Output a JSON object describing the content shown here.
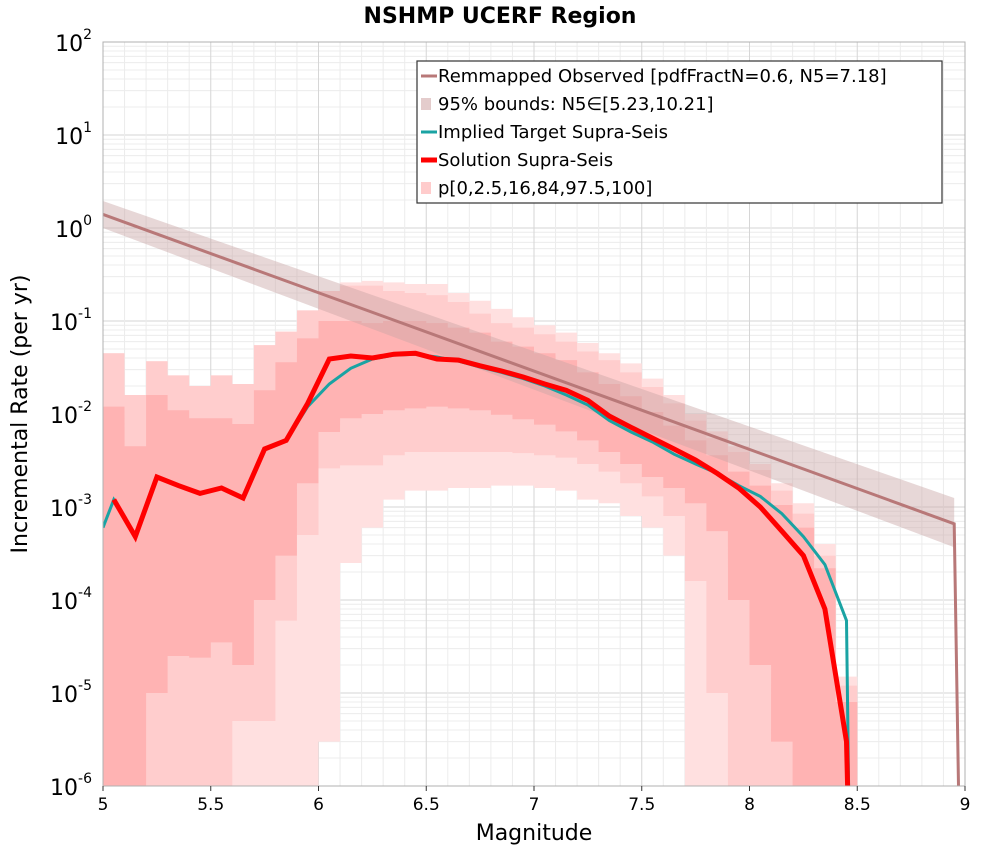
{
  "chart_data": {
    "type": "line",
    "title": "NSHMP UCERF Region",
    "xlabel": "Magnitude",
    "ylabel": "Incremental Rate (per yr)",
    "x_range": [
      5,
      9
    ],
    "y_range": [
      1e-06,
      100
    ],
    "y_scale": "log",
    "grid": true,
    "legend_position": "top-right",
    "x_ticks": [
      {
        "value": 5,
        "label": "5"
      },
      {
        "value": 5.5,
        "label": "5.5"
      },
      {
        "value": 6,
        "label": "6"
      },
      {
        "value": 6.5,
        "label": "6.5"
      },
      {
        "value": 7,
        "label": "7"
      },
      {
        "value": 7.5,
        "label": "7.5"
      },
      {
        "value": 8,
        "label": "8"
      },
      {
        "value": 8.5,
        "label": "8.5"
      },
      {
        "value": 9,
        "label": "9"
      }
    ],
    "y_ticks": [
      {
        "exp": -6,
        "base": "10",
        "power": "-6"
      },
      {
        "exp": -5,
        "base": "10",
        "power": "-5"
      },
      {
        "exp": -4,
        "base": "10",
        "power": "-4"
      },
      {
        "exp": -3,
        "base": "10",
        "power": "-3"
      },
      {
        "exp": -2,
        "base": "10",
        "power": "-2"
      },
      {
        "exp": -1,
        "base": "10",
        "power": "-1"
      },
      {
        "exp": 0,
        "base": "10",
        "power": "0"
      },
      {
        "exp": 1,
        "base": "10",
        "power": "1"
      },
      {
        "exp": 2,
        "base": "10",
        "power": "2"
      }
    ],
    "legend": [
      {
        "label": "Remmapped Observed [pdfFractN=0.6, N5=7.18]",
        "kind": "line",
        "color": "#b87878",
        "width": 3
      },
      {
        "label": "95% bounds: N5∈[5.23,10.21]",
        "kind": "band",
        "color": "#e4cccc"
      },
      {
        "label": "Implied Target Supra-Seis",
        "kind": "line",
        "color": "#1aa3a3",
        "width": 3
      },
      {
        "label": "Solution Supra-Seis",
        "kind": "line",
        "color": "#ff0000",
        "width": 5
      },
      {
        "label": "p[0,2.5,16,84,97.5,100]",
        "kind": "band",
        "color": "#ffcccc"
      }
    ],
    "colors": {
      "observed": "#b87878",
      "observed_band": "#e4cccc",
      "target": "#1aa3a3",
      "solution": "#ff0000",
      "band_outer": "#ffe0e0",
      "band_mid": "#ffc4c4",
      "band_inner": "#ffa8a8"
    },
    "series": [
      {
        "name": "Remmapped Observed [pdfFractN=0.6, N5=7.18]",
        "x": [
          5.0,
          8.95,
          8.97
        ],
        "y": [
          1.4,
          0.00066,
          1e-06
        ]
      },
      {
        "name": "95% bounds: N5∈[5.23,10.21]",
        "x": [
          5.0,
          8.95
        ],
        "lower": [
          1.0,
          0.00037
        ],
        "upper": [
          1.95,
          0.00125
        ]
      },
      {
        "name": "Implied Target Supra-Seis",
        "x": [
          5.0,
          5.05,
          5.15,
          5.25,
          5.35,
          5.45,
          5.55,
          5.65,
          5.75,
          5.85,
          5.95,
          6.05,
          6.15,
          6.25,
          6.35,
          6.45,
          6.55,
          6.65,
          6.75,
          6.85,
          6.95,
          7.05,
          7.15,
          7.25,
          7.35,
          7.45,
          7.55,
          7.65,
          7.75,
          7.85,
          7.95,
          8.05,
          8.15,
          8.25,
          8.35,
          8.45,
          8.46
        ],
        "y": [
          0.0006,
          0.0012,
          0.0005,
          0.0021,
          0.0017,
          0.0014,
          0.0016,
          0.00125,
          0.0042,
          0.0052,
          0.012,
          0.021,
          0.031,
          0.039,
          0.043,
          0.044,
          0.041,
          0.037,
          0.032,
          0.028,
          0.024,
          0.02,
          0.016,
          0.0125,
          0.0085,
          0.0064,
          0.005,
          0.0037,
          0.0029,
          0.0023,
          0.0017,
          0.0013,
          0.00085,
          0.00048,
          0.00024,
          6e-05,
          1e-06
        ]
      },
      {
        "name": "Solution Supra-Seis",
        "x": [
          5.05,
          5.15,
          5.25,
          5.35,
          5.45,
          5.55,
          5.65,
          5.75,
          5.85,
          5.95,
          6.05,
          6.15,
          6.25,
          6.35,
          6.45,
          6.55,
          6.65,
          6.75,
          6.85,
          6.95,
          7.05,
          7.15,
          7.25,
          7.35,
          7.45,
          7.55,
          7.65,
          7.75,
          7.85,
          7.95,
          8.05,
          8.15,
          8.25,
          8.35,
          8.45,
          8.455
        ],
        "y": [
          0.0012,
          0.00048,
          0.0021,
          0.0017,
          0.0014,
          0.0016,
          0.00125,
          0.0042,
          0.0052,
          0.013,
          0.039,
          0.042,
          0.04,
          0.044,
          0.045,
          0.039,
          0.038,
          0.033,
          0.029,
          0.025,
          0.021,
          0.018,
          0.014,
          0.0095,
          0.0072,
          0.0055,
          0.0042,
          0.0032,
          0.0023,
          0.0016,
          0.001,
          0.00055,
          0.0003,
          8e-05,
          3e-06,
          1e-06
        ]
      },
      {
        "name": "p[0,2.5,16,84,97.5,100]",
        "x": [
          5.05,
          5.15,
          5.25,
          5.35,
          5.45,
          5.55,
          5.65,
          5.75,
          5.85,
          5.95,
          6.05,
          6.15,
          6.25,
          6.35,
          6.45,
          6.55,
          6.65,
          6.75,
          6.85,
          6.95,
          7.05,
          7.15,
          7.25,
          7.35,
          7.45,
          7.55,
          7.65,
          7.75,
          7.85,
          7.95,
          8.05,
          8.15,
          8.25,
          8.35,
          8.45
        ],
        "p0": [
          1e-07,
          1e-07,
          1e-07,
          1e-07,
          1e-07,
          1e-07,
          1e-07,
          1e-07,
          1e-07,
          1e-07,
          3e-06,
          0.00025,
          0.0006,
          0.0012,
          0.0015,
          0.0015,
          0.0016,
          0.0016,
          0.0017,
          0.0017,
          0.0016,
          0.0015,
          0.0012,
          0.0011,
          0.0008,
          0.0006,
          0.0003,
          1e-07,
          1e-07,
          1e-07,
          1e-07,
          1e-07,
          1e-07,
          1e-07,
          1e-07
        ],
        "p2_5": [
          1e-07,
          1e-07,
          1e-07,
          1e-07,
          1e-07,
          1e-07,
          5e-06,
          5e-06,
          6e-05,
          0.0005,
          0.0026,
          0.0028,
          0.0028,
          0.0036,
          0.0039,
          0.0039,
          0.0039,
          0.0039,
          0.0039,
          0.0038,
          0.0036,
          0.0034,
          0.0029,
          0.0024,
          0.0018,
          0.0013,
          0.0008,
          0.00016,
          1e-05,
          1e-07,
          1e-07,
          1e-07,
          1e-07,
          1e-07,
          1e-07
        ],
        "p16": [
          1e-07,
          1e-06,
          1e-05,
          2.5e-05,
          2.4e-05,
          3.5e-05,
          2e-05,
          0.0001,
          0.0003,
          0.0018,
          0.0064,
          0.009,
          0.01,
          0.011,
          0.0115,
          0.012,
          0.0115,
          0.011,
          0.0098,
          0.0088,
          0.0077,
          0.0065,
          0.0052,
          0.0039,
          0.0029,
          0.0021,
          0.0016,
          0.0011,
          0.00055,
          0.0001,
          2e-05,
          3e-06,
          1e-07,
          1e-07,
          1e-07
        ],
        "p84": [
          0.012,
          0.0045,
          0.016,
          0.011,
          0.009,
          0.009,
          0.0078,
          0.018,
          0.036,
          0.065,
          0.1,
          0.1,
          0.095,
          0.1,
          0.1,
          0.095,
          0.085,
          0.075,
          0.06,
          0.053,
          0.045,
          0.038,
          0.028,
          0.021,
          0.0155,
          0.0105,
          0.0075,
          0.0052,
          0.0036,
          0.0024,
          0.0017,
          0.00105,
          0.0006,
          0.00022,
          8e-06
        ],
        "p97_5": [
          0.045,
          0.016,
          0.037,
          0.026,
          0.02,
          0.026,
          0.021,
          0.055,
          0.077,
          0.13,
          0.21,
          0.24,
          0.24,
          0.21,
          0.2,
          0.19,
          0.16,
          0.12,
          0.095,
          0.085,
          0.072,
          0.06,
          0.047,
          0.038,
          0.028,
          0.0195,
          0.013,
          0.0085,
          0.0055,
          0.0039,
          0.0025,
          0.0015,
          0.00085,
          0.0003,
          1.2e-05
        ],
        "p100": [
          0.045,
          0.016,
          0.037,
          0.026,
          0.02,
          0.026,
          0.021,
          0.055,
          0.077,
          0.13,
          0.21,
          0.26,
          0.27,
          0.26,
          0.25,
          0.25,
          0.2,
          0.165,
          0.135,
          0.11,
          0.09,
          0.075,
          0.058,
          0.045,
          0.035,
          0.024,
          0.016,
          0.01,
          0.0065,
          0.0045,
          0.0029,
          0.0018,
          0.0011,
          0.0004,
          1.5e-05
        ]
      }
    ]
  }
}
